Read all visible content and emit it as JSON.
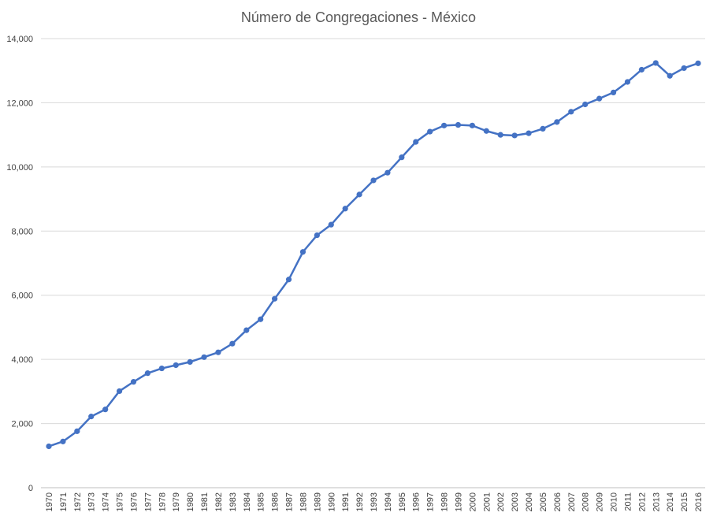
{
  "chart_data": {
    "type": "line",
    "title": "Número de Congregaciones - México",
    "xlabel": "",
    "ylabel": "",
    "ylim": [
      0,
      14000
    ],
    "yticks": [
      0,
      2000,
      4000,
      6000,
      8000,
      10000,
      12000,
      14000
    ],
    "ytick_labels": [
      "0",
      "2,000",
      "4,000",
      "6,000",
      "8,000",
      "10,000",
      "12,000",
      "14,000"
    ],
    "grid": true,
    "legend": "none",
    "color": "#4472c4",
    "x": [
      1970,
      1971,
      1972,
      1973,
      1974,
      1975,
      1976,
      1977,
      1978,
      1979,
      1980,
      1981,
      1982,
      1983,
      1984,
      1985,
      1986,
      1987,
      1988,
      1989,
      1990,
      1991,
      1992,
      1993,
      1994,
      1995,
      1996,
      1997,
      1998,
      1999,
      2000,
      2001,
      2002,
      2003,
      2004,
      2005,
      2006,
      2007,
      2008,
      2009,
      2010,
      2011,
      2012,
      2013,
      2014,
      2015,
      2016
    ],
    "series": [
      {
        "values": [
          1290,
          1440,
          1760,
          2220,
          2440,
          3010,
          3300,
          3570,
          3720,
          3820,
          3920,
          4070,
          4220,
          4490,
          4910,
          5250,
          5890,
          6490,
          7350,
          7870,
          8200,
          8700,
          9140,
          9580,
          9820,
          10300,
          10780,
          11100,
          11290,
          11310,
          11290,
          11120,
          11000,
          10980,
          11050,
          11190,
          11400,
          11720,
          11950,
          12130,
          12320,
          12650,
          13030,
          13240,
          12840,
          13080,
          13230
        ]
      }
    ]
  }
}
